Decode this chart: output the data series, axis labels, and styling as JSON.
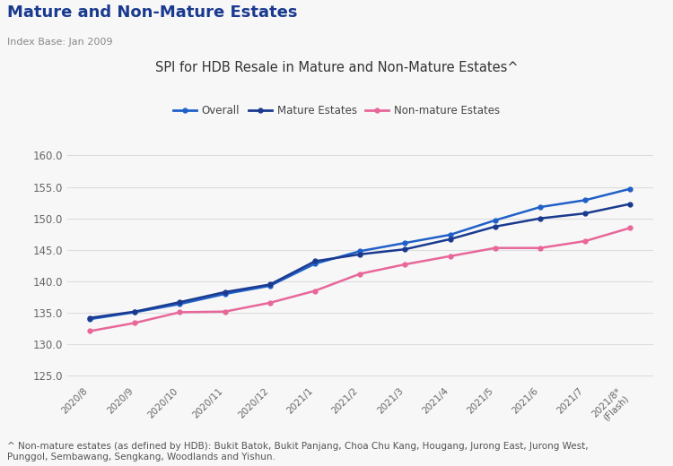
{
  "title_main": "Mature and Non-Mature Estates",
  "subtitle_index": "Index Base: Jan 2009",
  "chart_title": "SPI for HDB Resale in Mature and Non-Mature Estates^",
  "x_labels": [
    "2020/8",
    "2020/9",
    "2020/10",
    "2020/11",
    "2020/12",
    "2021/1",
    "2021/2",
    "2021/3",
    "2021/4",
    "2021/5",
    "2021/6",
    "2021/7",
    "2021/8*\n(Flash)"
  ],
  "mature_estates": [
    134.2,
    135.2,
    136.7,
    138.3,
    139.5,
    143.2,
    144.3,
    145.1,
    146.7,
    148.7,
    150.0,
    150.8,
    152.3
  ],
  "non_mature_estates": [
    132.1,
    133.4,
    135.1,
    135.2,
    136.6,
    138.5,
    141.2,
    142.7,
    144.0,
    145.3,
    145.3,
    146.4,
    148.5
  ],
  "overall": [
    134.0,
    135.1,
    136.4,
    138.0,
    139.3,
    142.8,
    144.8,
    146.1,
    147.4,
    149.7,
    151.8,
    152.9,
    154.7
  ],
  "ylim": [
    124.0,
    161.0
  ],
  "yticks": [
    125.0,
    130.0,
    135.0,
    140.0,
    145.0,
    150.0,
    155.0,
    160.0
  ],
  "color_mature": "#1a3a8f",
  "color_non_mature": "#e8679a",
  "color_overall": "#2060c8",
  "bg_color": "#f7f7f7",
  "footnote": "^ Non-mature estates (as defined by HDB): Bukit Batok, Bukit Panjang, Choa Chu Kang, Hougang, Jurong East, Jurong West,\nPunggol, Sembawang, Sengkang, Woodlands and Yishun.",
  "legend_overall": "Overall",
  "legend_mature": "Mature Estates",
  "legend_non_mature": "Non-mature Estates"
}
